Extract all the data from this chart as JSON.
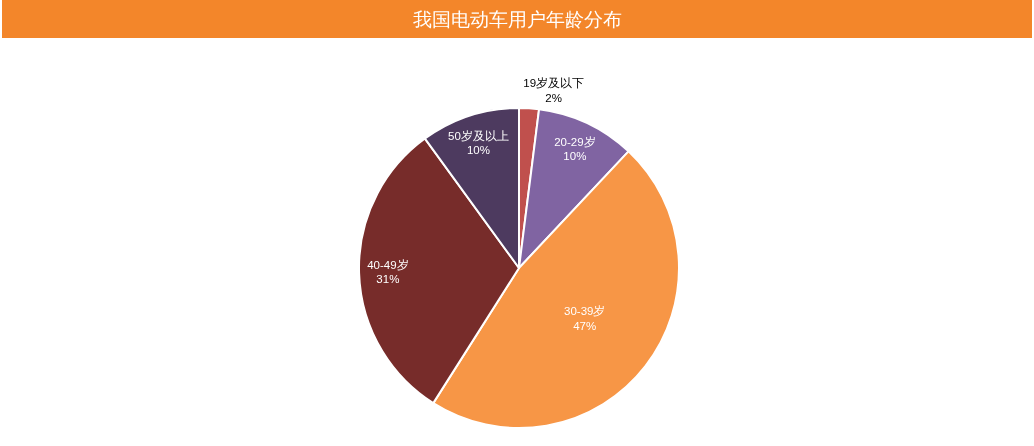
{
  "chart_data": {
    "type": "pie",
    "title": "我国电动车用户年龄分布",
    "categories": [
      "19岁及以下",
      "20-29岁",
      "30-39岁",
      "40-49岁",
      "50岁及以上"
    ],
    "values": [
      2,
      10,
      47,
      31,
      10
    ],
    "colors": [
      "#c0504d",
      "#8064a2",
      "#f79646",
      "#772c2a",
      "#4d3a5f"
    ],
    "value_labels": [
      "2%",
      "10%",
      "47%",
      "31%",
      "10%"
    ]
  }
}
